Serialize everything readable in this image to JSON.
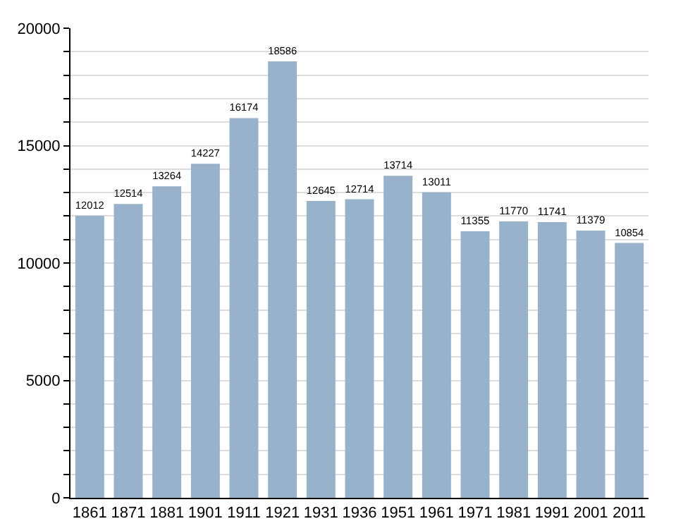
{
  "chart_data": {
    "type": "bar",
    "categories": [
      "1861",
      "1871",
      "1881",
      "1901",
      "1911",
      "1921",
      "1931",
      "1936",
      "1951",
      "1961",
      "1971",
      "1981",
      "1991",
      "2001",
      "2011"
    ],
    "values": [
      12012,
      12514,
      13264,
      14227,
      16174,
      18586,
      12645,
      12714,
      13714,
      13011,
      11355,
      11770,
      11741,
      11379,
      10854
    ],
    "color": "#98b2cc",
    "ylim": [
      0,
      20000
    ],
    "yticks": [
      0,
      {
        "value": 1000,
        "label": null
      },
      {
        "value": 2000,
        "label": null
      },
      {
        "value": 3000,
        "label": null
      },
      {
        "value": 4000,
        "label": null
      },
      5000,
      {
        "value": 6000,
        "label": null
      },
      {
        "value": 7000,
        "label": null
      },
      {
        "value": 8000,
        "label": null
      },
      {
        "value": 9000,
        "label": null
      },
      10000,
      {
        "value": 11000,
        "label": null
      },
      {
        "value": 12000,
        "label": null
      },
      {
        "value": 13000,
        "label": null
      },
      {
        "value": 14000,
        "label": null
      },
      15000,
      {
        "value": 16000,
        "label": null
      },
      {
        "value": 17000,
        "label": null
      },
      {
        "value": 18000,
        "label": null
      },
      {
        "value": 19000,
        "label": null
      },
      20000
    ],
    "grid": true,
    "data_labels": true
  }
}
